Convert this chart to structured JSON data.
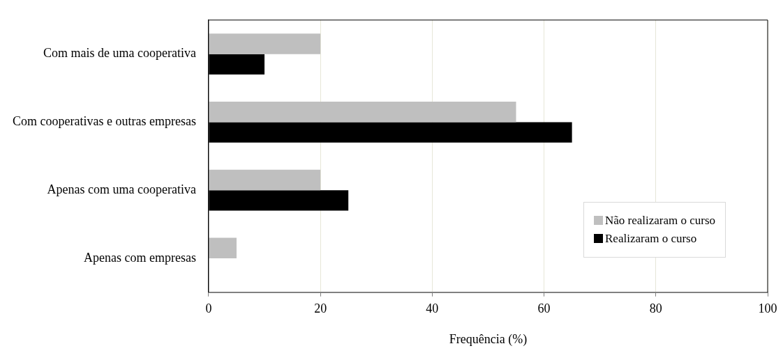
{
  "chart_data": {
    "type": "bar",
    "orientation": "horizontal",
    "xlabel": "Frequência (%)",
    "categories": [
      "Com mais de uma cooperativa",
      "Com cooperativas e outras empresas",
      "Apenas com uma cooperativa",
      "Apenas com empresas"
    ],
    "series": [
      {
        "name": "Não realizaram o curso",
        "color": "#bfbfbf",
        "values": [
          20,
          55,
          20,
          5
        ]
      },
      {
        "name": "Realizaram o curso",
        "color": "#000000",
        "values": [
          10,
          65,
          25,
          0
        ]
      }
    ],
    "xlim": [
      0,
      100
    ],
    "xticks": [
      0,
      20,
      40,
      60,
      80,
      100
    ],
    "grid": "x",
    "legend": "bottom right"
  }
}
